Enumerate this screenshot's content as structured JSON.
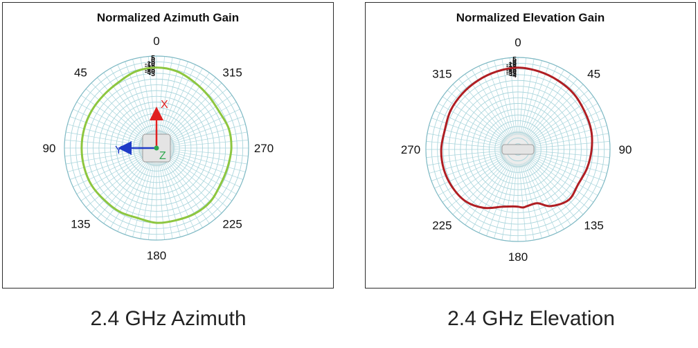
{
  "chart_data": [
    {
      "type": "polar",
      "title": "Normalized Azimuth Gain",
      "caption": "2.4 GHz Azimuth",
      "angle_labels": [
        {
          "text": "0",
          "deg": 0
        },
        {
          "text": "45",
          "deg": 45
        },
        {
          "text": "90",
          "deg": 90
        },
        {
          "text": "135",
          "deg": 135
        },
        {
          "text": "180",
          "deg": 180
        },
        {
          "text": "225",
          "deg": 225
        },
        {
          "text": "270",
          "deg": 270
        },
        {
          "text": "315",
          "deg": 315
        }
      ],
      "radial_tick_labels": [
        "5",
        "0",
        "-5",
        "-10",
        "-15",
        "-20",
        "-25",
        "-30",
        "-3"
      ],
      "radial_range_db": [
        -35,
        5
      ],
      "axis_indicators": {
        "x": "X",
        "y": "Y",
        "z": "Z"
      },
      "series": [
        {
          "color": "#8dc63f",
          "angles_deg": [
            0,
            15,
            30,
            45,
            60,
            75,
            90,
            105,
            120,
            135,
            150,
            165,
            180,
            195,
            210,
            225,
            240,
            255,
            270,
            285,
            300,
            315,
            330,
            345
          ],
          "gain_db": [
            0,
            -0.5,
            -2,
            -2.5,
            -2.5,
            -2.5,
            -2.5,
            -2.5,
            -2.5,
            -3,
            -3,
            -3.5,
            -2.5,
            -2.5,
            -2,
            -2,
            -3,
            -3,
            -2.5,
            -2.5,
            -3.5,
            -3,
            -2,
            -0.5
          ]
        }
      ]
    },
    {
      "type": "polar",
      "title": "Normalized Elevation Gain",
      "caption": "2.4 GHz Elevation",
      "angle_labels": [
        {
          "text": "0",
          "deg": 0
        },
        {
          "text": "45",
          "deg": 45
        },
        {
          "text": "90",
          "deg": 90
        },
        {
          "text": "135",
          "deg": 135
        },
        {
          "text": "180",
          "deg": 180
        },
        {
          "text": "225",
          "deg": 225
        },
        {
          "text": "270",
          "deg": 270
        },
        {
          "text": "315",
          "deg": 315
        }
      ],
      "radial_tick_labels": [
        "5",
        "0",
        "-5",
        "-10",
        "-15",
        "-20",
        "-25",
        "-30",
        "-35",
        "-4"
      ],
      "radial_range_db": [
        -40,
        5
      ],
      "series": [
        {
          "color": "#b01e23",
          "angles_deg": [
            0,
            15,
            30,
            45,
            60,
            75,
            90,
            105,
            120,
            135,
            150,
            160,
            170,
            175,
            180,
            185,
            195,
            210,
            225,
            240,
            255,
            270,
            285,
            300,
            315,
            330,
            345
          ],
          "gain_db": [
            0,
            -0.5,
            -1,
            -1.5,
            -2.5,
            -3,
            -4,
            -5,
            -6,
            -5,
            -8,
            -12,
            -12,
            -11.5,
            -12,
            -12,
            -11,
            -7,
            -4,
            -3,
            -2.5,
            -2.5,
            -3,
            -2,
            -1.5,
            -1,
            -0.5
          ]
        }
      ]
    }
  ]
}
